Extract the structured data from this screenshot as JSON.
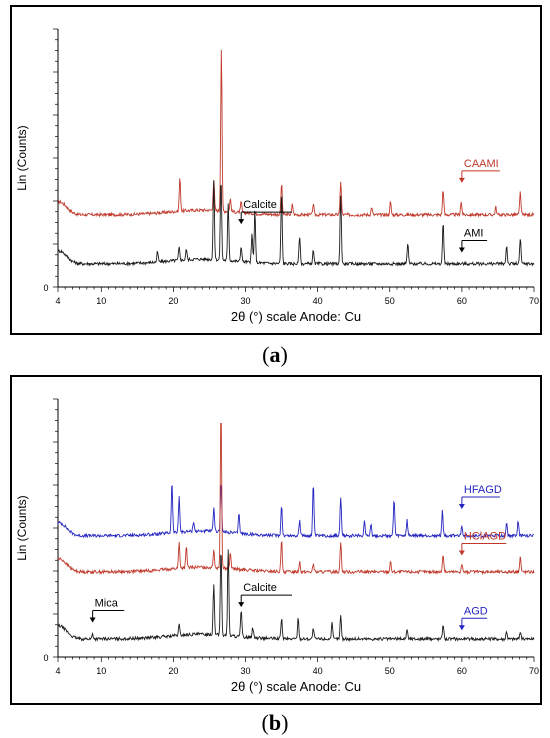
{
  "panels": [
    {
      "id": "a",
      "label_open": "(",
      "label_letter": "a",
      "label_close": ")",
      "ylabel": "Lin (Counts)",
      "xlabel": "2θ (°) scale Anode: Cu",
      "y_zero_label": "0",
      "x_ticks": [
        "4",
        "10",
        "20",
        "30",
        "40",
        "50",
        "60",
        "70"
      ],
      "annotations": [
        {
          "text": "CAAMI",
          "color": "#c0392b",
          "x": 60
        },
        {
          "text": "Calcite",
          "color": "#000000",
          "x": 29.4
        },
        {
          "text": "AMI",
          "color": "#000000",
          "x": 60
        }
      ]
    },
    {
      "id": "b",
      "label_open": "(",
      "label_letter": "b",
      "label_close": ")",
      "ylabel": "Lin (Counts)",
      "xlabel": "2θ (°) scale Anode: Cu",
      "y_zero_label": "0",
      "x_ticks": [
        "4",
        "10",
        "20",
        "30",
        "40",
        "50",
        "60",
        "70"
      ],
      "annotations": [
        {
          "text": "HFAGD",
          "color": "#2525c0",
          "x": 60
        },
        {
          "text": "HClAGD",
          "color": "#c0392b",
          "x": 60
        },
        {
          "text": "Calcite",
          "color": "#000000",
          "x": 29.4
        },
        {
          "text": "Mica",
          "color": "#000000",
          "x": 8.8
        },
        {
          "text": "AGD",
          "color": "#2525c0",
          "x": 60
        }
      ]
    }
  ],
  "chart_data": [
    {
      "type": "line",
      "xlabel": "2θ (°) scale Anode: Cu",
      "ylabel": "Lin (Counts)",
      "xlim": [
        4,
        70
      ],
      "grid": false,
      "series": [
        {
          "name": "CAAMI",
          "color": "#c0392b",
          "baseline": 0.28,
          "peaks": [
            [
              20.9,
              0.13
            ],
            [
              25.6,
              0.12
            ],
            [
              26.65,
              0.63
            ],
            [
              27.9,
              0.05
            ],
            [
              29.4,
              0.04
            ],
            [
              35.0,
              0.12
            ],
            [
              36.5,
              0.04
            ],
            [
              39.4,
              0.04
            ],
            [
              43.2,
              0.13
            ],
            [
              47.5,
              0.03
            ],
            [
              50.1,
              0.05
            ],
            [
              57.4,
              0.1
            ],
            [
              59.9,
              0.05
            ],
            [
              64.7,
              0.03
            ],
            [
              68.1,
              0.09
            ]
          ]
        },
        {
          "name": "AMI",
          "color": "#1a1a1a",
          "baseline": 0.09,
          "peaks": [
            [
              17.8,
              0.04
            ],
            [
              20.8,
              0.05
            ],
            [
              21.8,
              0.04
            ],
            [
              25.6,
              0.3
            ],
            [
              26.6,
              0.32
            ],
            [
              27.6,
              0.22
            ],
            [
              29.4,
              0.06
            ],
            [
              30.9,
              0.11
            ],
            [
              31.3,
              0.2
            ],
            [
              35.0,
              0.28
            ],
            [
              37.5,
              0.11
            ],
            [
              39.4,
              0.05
            ],
            [
              43.2,
              0.27
            ],
            [
              52.5,
              0.08
            ],
            [
              57.4,
              0.16
            ],
            [
              66.2,
              0.07
            ],
            [
              68.1,
              0.1
            ]
          ]
        }
      ]
    },
    {
      "type": "line",
      "xlabel": "2θ (°) scale Anode: Cu",
      "ylabel": "Lin (Counts)",
      "xlim": [
        4,
        70
      ],
      "grid": false,
      "series": [
        {
          "name": "HFAGD",
          "color": "#2525c0",
          "baseline": 0.47,
          "peaks": [
            [
              19.8,
              0.2
            ],
            [
              20.8,
              0.14
            ],
            [
              22.8,
              0.04
            ],
            [
              25.6,
              0.09
            ],
            [
              26.6,
              0.2
            ],
            [
              29.1,
              0.08
            ],
            [
              35.0,
              0.12
            ],
            [
              37.5,
              0.06
            ],
            [
              39.4,
              0.2
            ],
            [
              43.2,
              0.15
            ],
            [
              46.5,
              0.06
            ],
            [
              47.4,
              0.05
            ],
            [
              50.6,
              0.14
            ],
            [
              52.4,
              0.06
            ],
            [
              57.3,
              0.1
            ],
            [
              60.0,
              0.04
            ],
            [
              66.2,
              0.05
            ],
            [
              67.8,
              0.06
            ]
          ]
        },
        {
          "name": "HClAGD",
          "color": "#c0392b",
          "baseline": 0.33,
          "peaks": [
            [
              20.8,
              0.1
            ],
            [
              21.8,
              0.08
            ],
            [
              25.6,
              0.07
            ],
            [
              26.6,
              0.62
            ],
            [
              27.9,
              0.06
            ],
            [
              35.0,
              0.12
            ],
            [
              37.5,
              0.04
            ],
            [
              39.4,
              0.03
            ],
            [
              43.2,
              0.12
            ],
            [
              50.1,
              0.04
            ],
            [
              57.4,
              0.07
            ],
            [
              60.0,
              0.03
            ],
            [
              68.1,
              0.06
            ]
          ]
        },
        {
          "name": "AGD",
          "color": "#1a1a1a",
          "baseline": 0.07,
          "peaks": [
            [
              8.8,
              0.02
            ],
            [
              20.8,
              0.04
            ],
            [
              25.6,
              0.2
            ],
            [
              26.6,
              0.34
            ],
            [
              27.6,
              0.33
            ],
            [
              29.4,
              0.1
            ],
            [
              31.0,
              0.04
            ],
            [
              35.0,
              0.08
            ],
            [
              37.3,
              0.08
            ],
            [
              39.4,
              0.04
            ],
            [
              42.0,
              0.06
            ],
            [
              43.2,
              0.09
            ],
            [
              52.4,
              0.04
            ],
            [
              57.4,
              0.06
            ],
            [
              66.2,
              0.03
            ],
            [
              68.1,
              0.03
            ]
          ]
        }
      ]
    }
  ]
}
